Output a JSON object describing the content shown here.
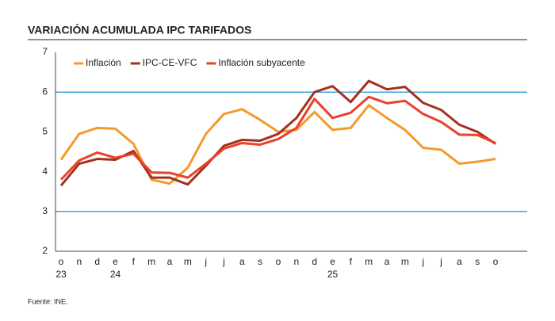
{
  "chart_data": {
    "type": "line",
    "title": "VARIACIÓN ACUMULADA IPC TARIFADOS",
    "source": "Fuente: INE.",
    "categories": [
      "o",
      "n",
      "d",
      "e",
      "f",
      "m",
      "a",
      "m",
      "j",
      "j",
      "a",
      "s",
      "o",
      "n",
      "d",
      "e",
      "f",
      "m",
      "a",
      "m",
      "j",
      "j",
      "a",
      "s",
      "o"
    ],
    "years": [
      "23",
      null,
      null,
      "24",
      null,
      null,
      null,
      null,
      null,
      null,
      null,
      null,
      null,
      null,
      null,
      "25",
      null,
      null,
      null,
      null,
      null,
      null,
      null,
      null,
      null
    ],
    "series": [
      {
        "name": "Inflación",
        "color": "#f39a2c",
        "values": [
          4.3,
          4.95,
          5.1,
          5.08,
          4.7,
          3.8,
          3.7,
          4.1,
          4.95,
          5.45,
          5.57,
          5.3,
          5.0,
          5.05,
          5.5,
          5.05,
          5.1,
          5.67,
          5.35,
          5.05,
          4.6,
          4.55,
          4.2,
          4.25,
          4.32
        ]
      },
      {
        "name": "IPC-CE-VFC",
        "color": "#a3301f",
        "values": [
          3.65,
          4.2,
          4.32,
          4.3,
          4.52,
          3.85,
          3.85,
          3.68,
          4.15,
          4.65,
          4.8,
          4.78,
          4.95,
          5.35,
          6.0,
          6.15,
          5.75,
          6.28,
          6.07,
          6.13,
          5.73,
          5.55,
          5.18,
          5.0,
          4.7
        ]
      },
      {
        "name": "Inflación subyacente",
        "color": "#e8412c",
        "values": [
          3.8,
          4.28,
          4.48,
          4.35,
          4.45,
          3.98,
          3.97,
          3.85,
          4.2,
          4.58,
          4.72,
          4.68,
          4.82,
          5.1,
          5.83,
          5.35,
          5.48,
          5.88,
          5.72,
          5.78,
          5.45,
          5.25,
          4.93,
          4.92,
          4.72
        ]
      }
    ],
    "ylim": [
      2,
      7
    ],
    "yticks": [
      2,
      3,
      4,
      5,
      6,
      7
    ],
    "gridlines": [
      3,
      6
    ],
    "grid_color": "#3aa7dc"
  }
}
